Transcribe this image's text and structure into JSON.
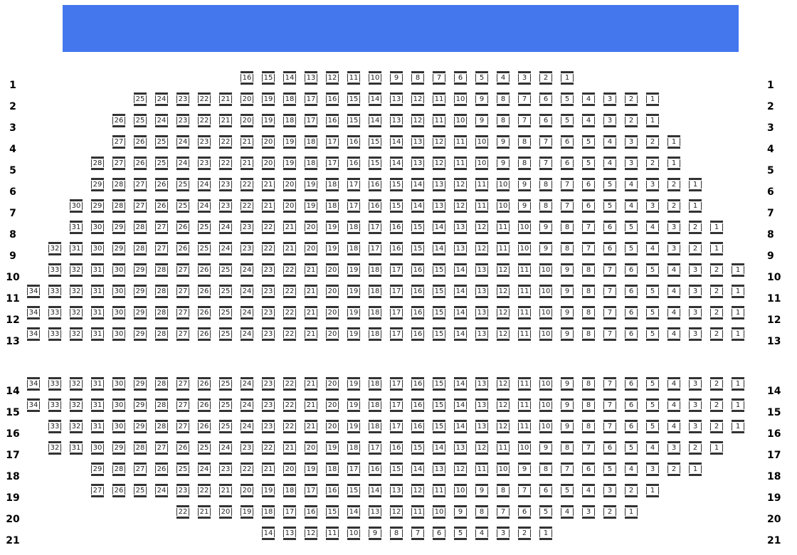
{
  "stage": {
    "color": "#4477ee"
  },
  "seat_style": {
    "bar_color": "#333333",
    "fill": "#ffffff"
  },
  "rows": [
    {
      "label": "1",
      "seats": 16
    },
    {
      "label": "2",
      "seats": 25
    },
    {
      "label": "3",
      "seats": 26
    },
    {
      "label": "4",
      "seats": 27
    },
    {
      "label": "5",
      "seats": 28
    },
    {
      "label": "6",
      "seats": 29
    },
    {
      "label": "7",
      "seats": 30
    },
    {
      "label": "8",
      "seats": 31
    },
    {
      "label": "9",
      "seats": 32
    },
    {
      "label": "10",
      "seats": 33
    },
    {
      "label": "11",
      "seats": 34
    },
    {
      "label": "12",
      "seats": 34
    },
    {
      "label": "13",
      "seats": 34
    },
    {
      "label": "14",
      "seats": 34
    },
    {
      "label": "15",
      "seats": 34
    },
    {
      "label": "16",
      "seats": 33
    },
    {
      "label": "17",
      "seats": 32
    },
    {
      "label": "18",
      "seats": 29
    },
    {
      "label": "19",
      "seats": 27
    },
    {
      "label": "20",
      "seats": 22
    },
    {
      "label": "21",
      "seats": 14
    }
  ]
}
